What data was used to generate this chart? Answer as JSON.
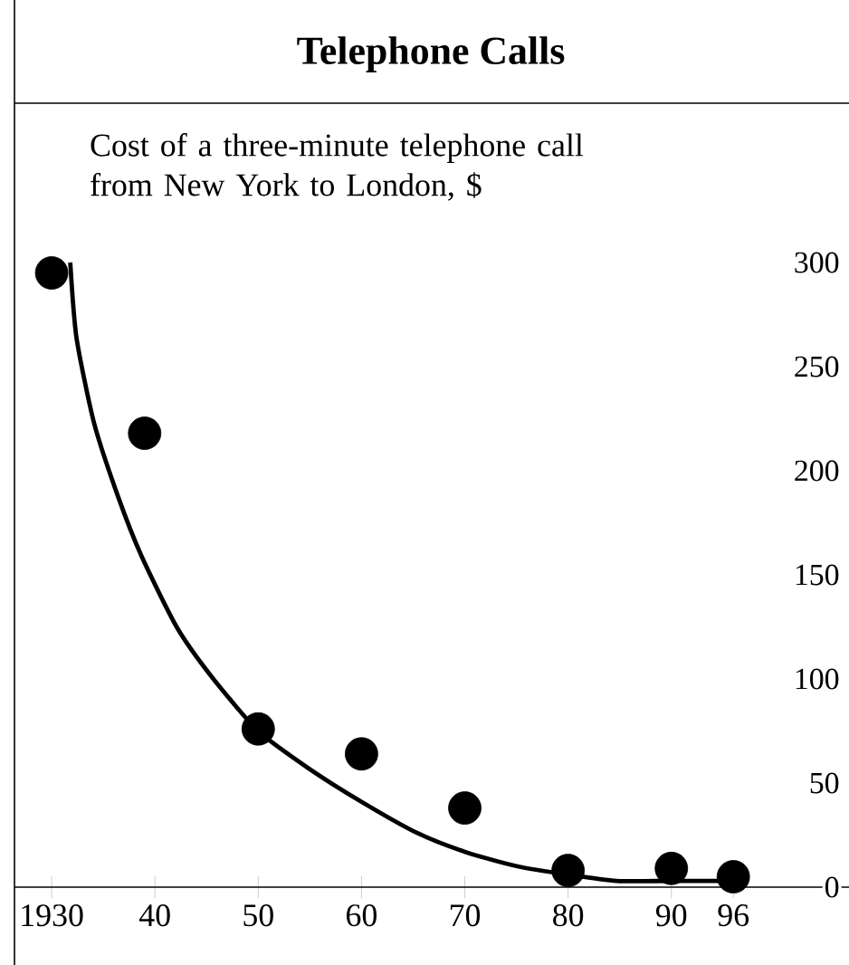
{
  "chart_data": {
    "type": "scatter",
    "title": "Telephone Calls",
    "subtitle": "Cost of a three-minute telephone call from New York to London, $",
    "xlim": [
      1926.4,
      2007.2
    ],
    "xticks": [
      {
        "value": 1930,
        "label": "1930"
      },
      {
        "value": 1940,
        "label": "40"
      },
      {
        "value": 1950,
        "label": "50"
      },
      {
        "value": 1960,
        "label": "60"
      },
      {
        "value": 1970,
        "label": "70"
      },
      {
        "value": 1980,
        "label": "80"
      },
      {
        "value": 1990,
        "label": "90"
      },
      {
        "value": 1996,
        "label": "96"
      }
    ],
    "ylim": [
      0,
      300
    ],
    "yticks": [
      0,
      50,
      100,
      150,
      200,
      250,
      300
    ],
    "marker": "circle",
    "series": [
      {
        "color": "#000000",
        "x": [
          1930,
          1939,
          1950,
          1960,
          1970,
          1980,
          1990,
          1996
        ],
        "values": [
          295,
          218,
          76,
          64,
          38,
          8,
          9,
          5
        ]
      },
      {
        "type": "line",
        "color": "#000000",
        "marker": "none",
        "x": [
          1931.8,
          1932.4,
          1934.1,
          1936.4,
          1938.7,
          1942.1,
          1945.5,
          1950,
          1954.9,
          1960,
          1965.4,
          1970,
          1975.1,
          1980,
          1984.7,
          1990,
          1996
        ],
        "values": [
          300,
          264,
          223,
          188,
          159,
          125,
          101,
          75,
          57,
          41,
          26,
          17,
          10,
          6,
          3,
          3,
          3
        ]
      }
    ]
  }
}
